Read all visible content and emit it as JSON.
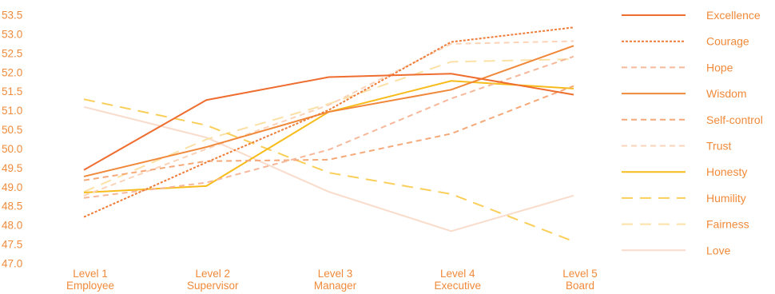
{
  "chart_data": {
    "type": "line",
    "title": "",
    "xlabel": "",
    "ylabel": "",
    "categories": [
      [
        "Level 1",
        "Employee"
      ],
      [
        "Level 2",
        "Supervisor"
      ],
      [
        "Level 3",
        "Manager"
      ],
      [
        "Level 4",
        "Executive"
      ],
      [
        "Level 5",
        "Board"
      ]
    ],
    "ylim": [
      47.0,
      53.5
    ],
    "y_ticks": [
      "47.0",
      "47.5",
      "48.0",
      "48.5",
      "49.0",
      "49.5",
      "50.0",
      "50.5",
      "51.0",
      "51.5",
      "52.0",
      "52.5",
      "53.0",
      "53.5"
    ],
    "grid": false,
    "legend_position": "right",
    "series": [
      {
        "name": "Excellence",
        "values": [
          49.45,
          51.28,
          51.88,
          51.97,
          51.42
        ],
        "color": "#ee6d2f",
        "dash": "solid"
      },
      {
        "name": "Courage",
        "values": [
          48.22,
          49.65,
          51.02,
          52.8,
          53.18
        ],
        "color": "#ee7c38",
        "dash": "dotted"
      },
      {
        "name": "Hope",
        "values": [
          48.72,
          49.12,
          49.98,
          51.32,
          52.42
        ],
        "color": "#f6b89a",
        "dash": "dashed"
      },
      {
        "name": "Wisdom",
        "values": [
          49.28,
          50.05,
          50.97,
          51.55,
          52.7
        ],
        "color": "#f0883a",
        "dash": "solid"
      },
      {
        "name": "Self-control",
        "values": [
          49.18,
          49.68,
          49.72,
          50.4,
          51.65
        ],
        "color": "#f5a878",
        "dash": "dashed"
      },
      {
        "name": "Trust",
        "values": [
          48.78,
          50.0,
          51.15,
          52.75,
          52.82
        ],
        "color": "#fbd3b8",
        "dash": "dashed"
      },
      {
        "name": "Honesty",
        "values": [
          48.86,
          49.03,
          50.97,
          51.78,
          51.58
        ],
        "color": "#f7bc1c",
        "dash": "solid"
      },
      {
        "name": "Humility",
        "values": [
          51.3,
          50.62,
          49.38,
          48.82,
          47.58
        ],
        "color": "#f9cf5a",
        "dash": "longdash"
      },
      {
        "name": "Fairness",
        "values": [
          48.88,
          50.25,
          51.18,
          52.28,
          52.35
        ],
        "color": "#fbe1a6",
        "dash": "longdash"
      },
      {
        "name": "Love",
        "values": [
          51.1,
          50.3,
          48.88,
          47.85,
          48.78
        ],
        "color": "#f9dccb",
        "dash": "solid"
      }
    ]
  }
}
